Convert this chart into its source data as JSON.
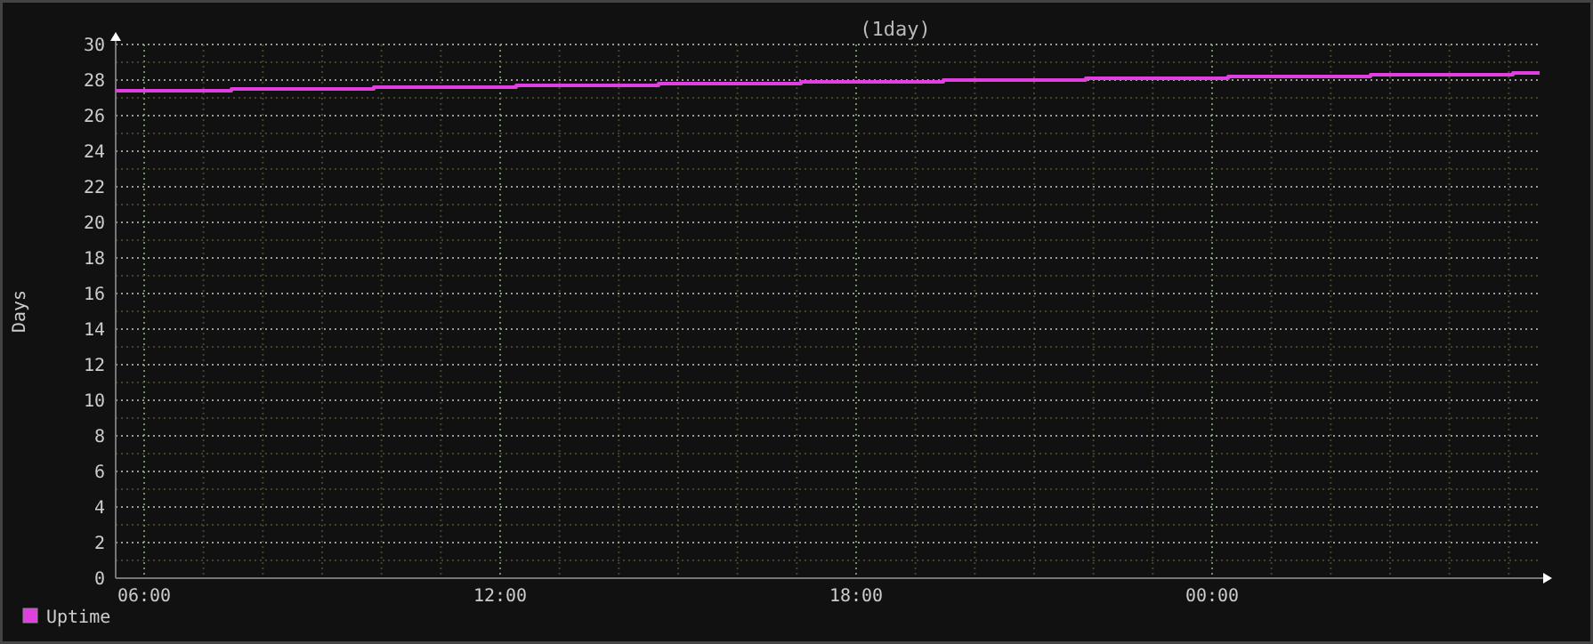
{
  "chart_data": {
    "type": "step",
    "title": "(1day)",
    "ylabel": "Days",
    "x": [
      5.52,
      7.47,
      9.87,
      12.27,
      14.67,
      17.07,
      19.47,
      21.87,
      24.27,
      26.67,
      29.07,
      29.52
    ],
    "series": [
      {
        "name": "Uptime",
        "color": "#e040e0",
        "values": [
          27.4,
          27.5,
          27.6,
          27.7,
          27.8,
          27.9,
          28.0,
          28.1,
          28.2,
          28.3,
          28.4,
          28.4
        ]
      }
    ],
    "xlim": [
      5.52,
      29.52
    ],
    "xticks": [
      {
        "value": 6,
        "label": "06:00"
      },
      {
        "value": 7,
        "label": null
      },
      {
        "value": 8,
        "label": null
      },
      {
        "value": 9,
        "label": null
      },
      {
        "value": 10,
        "label": null
      },
      {
        "value": 11,
        "label": null
      },
      {
        "value": 12,
        "label": "12:00"
      },
      {
        "value": 13,
        "label": null
      },
      {
        "value": 14,
        "label": null
      },
      {
        "value": 15,
        "label": null
      },
      {
        "value": 16,
        "label": null
      },
      {
        "value": 17,
        "label": null
      },
      {
        "value": 18,
        "label": "18:00"
      },
      {
        "value": 19,
        "label": null
      },
      {
        "value": 20,
        "label": null
      },
      {
        "value": 21,
        "label": null
      },
      {
        "value": 22,
        "label": null
      },
      {
        "value": 23,
        "label": null
      },
      {
        "value": 24,
        "label": "00:00"
      },
      {
        "value": 25,
        "label": null
      },
      {
        "value": 26,
        "label": null
      },
      {
        "value": 27,
        "label": null
      },
      {
        "value": 28,
        "label": null
      },
      {
        "value": 29,
        "label": null
      }
    ],
    "ylim": [
      0,
      30
    ],
    "yticks": [
      0,
      {
        "value": 1,
        "label": null
      },
      2,
      {
        "value": 3,
        "label": null
      },
      4,
      {
        "value": 5,
        "label": null
      },
      6,
      {
        "value": 7,
        "label": null
      },
      8,
      {
        "value": 9,
        "label": null
      },
      10,
      {
        "value": 11,
        "label": null
      },
      12,
      {
        "value": 13,
        "label": null
      },
      14,
      {
        "value": 15,
        "label": null
      },
      16,
      {
        "value": 17,
        "label": null
      },
      18,
      {
        "value": 19,
        "label": null
      },
      20,
      {
        "value": 21,
        "label": null
      },
      22,
      {
        "value": 23,
        "label": null
      },
      24,
      {
        "value": 25,
        "label": null
      },
      26,
      {
        "value": 27,
        "label": null
      },
      28,
      {
        "value": 29,
        "label": null
      },
      30
    ],
    "grid": true,
    "legend": "bottom left"
  }
}
